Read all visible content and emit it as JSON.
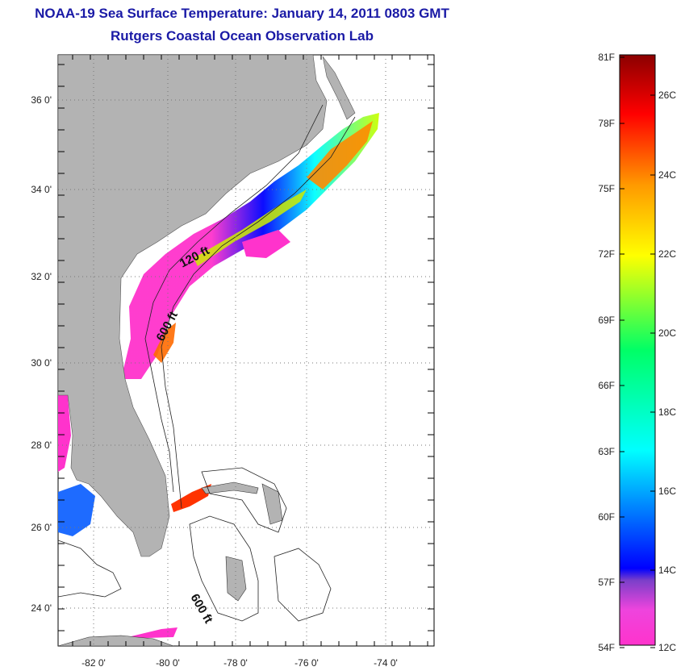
{
  "title": {
    "line1": "NOAA-19 Sea Surface Temperature:  January 14, 2011 0803 GMT",
    "line2": "Rutgers Coastal Ocean Observation Lab"
  },
  "map": {
    "lat_labels": [
      "36 0'",
      "34 0'",
      "32 0'",
      "30 0'",
      "28 0'",
      "26 0'",
      "24 0'"
    ],
    "lon_labels": [
      "-82 0'",
      "-80 0'",
      "-78 0'",
      "-76 0'",
      "-74 0'"
    ],
    "contour_labels": [
      "120 ft",
      "600 ft",
      "600 ft"
    ],
    "colors": {
      "land": "#b3b3b3",
      "ocean": "#ffffff",
      "grid": "#777777"
    }
  },
  "colorbar": {
    "fahrenheit_labels": [
      "81F",
      "78F",
      "75F",
      "72F",
      "69F",
      "66F",
      "63F",
      "60F",
      "57F",
      "54F"
    ],
    "celsius_labels": [
      "26C",
      "24C",
      "22C",
      "20C",
      "18C",
      "16C",
      "14C",
      "12C"
    ],
    "colors": [
      "#ff33cc",
      "#7a3fc9",
      "#0000ff",
      "#00ffff",
      "#00ff66",
      "#ffff00",
      "#ff9900",
      "#ff0000",
      "#8b0000"
    ]
  }
}
